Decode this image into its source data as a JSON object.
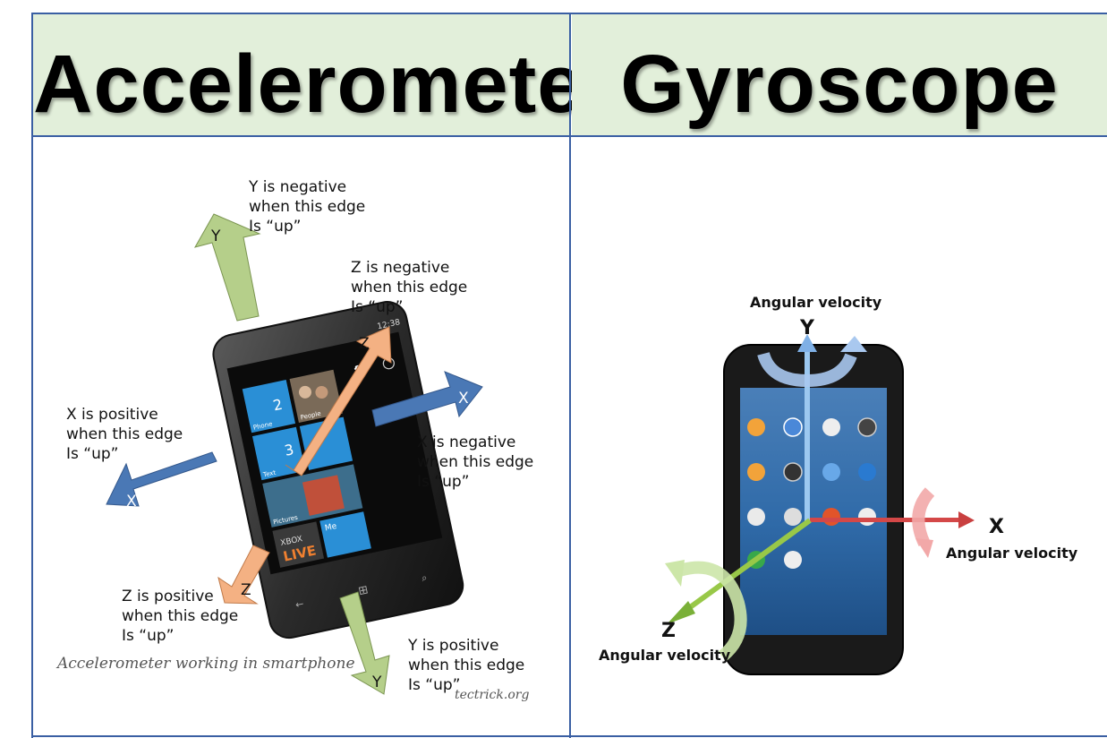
{
  "headers": {
    "left": "Accelerometer",
    "right": "Gyroscope"
  },
  "accelerometer": {
    "axis_labels": {
      "y_top": "Y",
      "y_bottom": "Y",
      "z_top": "Z",
      "z_bottom": "Z",
      "x_right": "X",
      "x_left": "X"
    },
    "annotations": {
      "y_negative": [
        "Y is negative",
        "when this edge",
        "Is “up”"
      ],
      "z_negative": [
        "Z is negative",
        "when this edge",
        "Is “up”"
      ],
      "x_positive": [
        "X is positive",
        "when this edge",
        "Is “up”"
      ],
      "x_negative": [
        "X is negative",
        "when this edge",
        "Is “up”"
      ],
      "z_positive": [
        "Z is positive",
        "when this edge",
        "Is “up”"
      ],
      "y_positive": [
        "Y is positive",
        "when this edge",
        "Is “up”"
      ]
    },
    "caption": "Accelerometer working in  smartphone",
    "watermark": "tectrick.org",
    "phone": {
      "time": "12:38",
      "tiles": {
        "phone": "Phone",
        "people": "People",
        "text": "Text",
        "pictures": "Pictures",
        "xbox": "XBOX",
        "live": "LIVE",
        "me": "Me"
      },
      "counts": {
        "phone": "2",
        "text": "3"
      }
    }
  },
  "gyroscope": {
    "axes": {
      "y": {
        "letter": "Y",
        "label": "Angular velocity"
      },
      "x": {
        "letter": "X",
        "label": "Angular velocity"
      },
      "z": {
        "letter": "Z",
        "label": "Angular velocity"
      }
    }
  },
  "colors": {
    "header_bg": "#e2efda",
    "border": "#3a5fa3",
    "arrow_y": "#b5cf8a",
    "arrow_z": "#f4b183",
    "arrow_x": "#4a78b5",
    "gyro_y": "#7fb0e6",
    "gyro_x": "#e04545",
    "gyro_z": "#98c848"
  }
}
